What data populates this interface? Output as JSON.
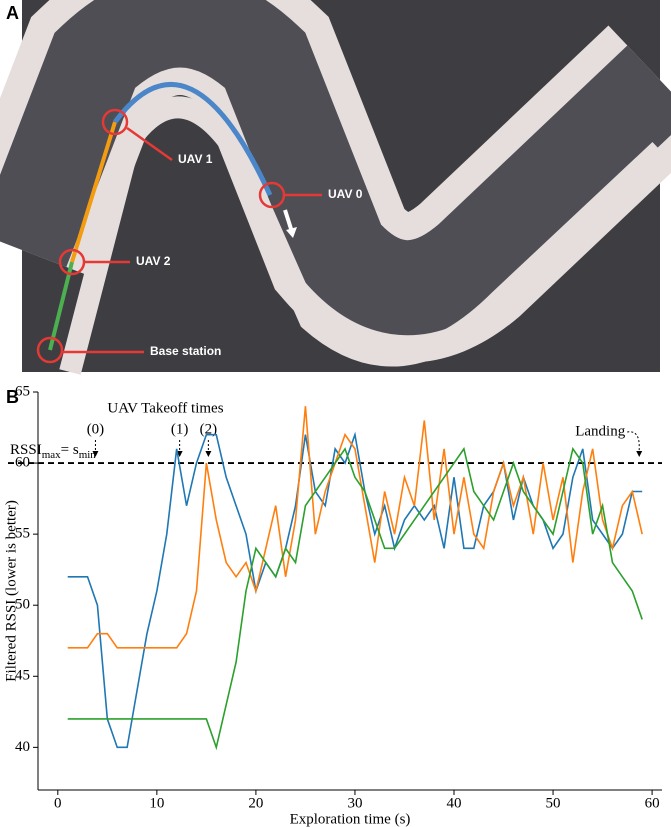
{
  "panel_a": {
    "label": "A",
    "annotations": [
      "UAV 1",
      "UAV 0",
      "UAV 2",
      "Base station"
    ]
  },
  "chart_data": {
    "type": "line",
    "panel_label": "B",
    "xlabel": "Exploration time (s)",
    "ylabel": "Filtered RSSI (lower is better)",
    "xlim": [
      -2,
      61
    ],
    "xticks": [
      0,
      10,
      20,
      30,
      40,
      50,
      60
    ],
    "ylim": [
      37,
      65
    ],
    "yticks": [
      40,
      45,
      50,
      55,
      60,
      65
    ],
    "x": [
      1,
      2,
      3,
      4,
      5,
      6,
      7,
      8,
      9,
      10,
      11,
      12,
      13,
      14,
      15,
      16,
      17,
      18,
      19,
      20,
      21,
      22,
      23,
      24,
      25,
      26,
      27,
      28,
      29,
      30,
      31,
      32,
      33,
      34,
      35,
      36,
      37,
      38,
      39,
      40,
      41,
      42,
      43,
      44,
      45,
      46,
      47,
      48,
      49,
      50,
      51,
      52,
      53,
      54,
      55,
      56,
      57,
      58,
      59
    ],
    "series": [
      {
        "color": "#1f77b4",
        "values": [
          52,
          52,
          52,
          50,
          42,
          40,
          40,
          44,
          48,
          51,
          55,
          61,
          57,
          60,
          62,
          62,
          59,
          57,
          55,
          51,
          53,
          52,
          54,
          57,
          62,
          58,
          57,
          61,
          60,
          62,
          58,
          55,
          57,
          54,
          56,
          57,
          56,
          57,
          54,
          59,
          54,
          54,
          57,
          58,
          60,
          56,
          59,
          57,
          56,
          54,
          55,
          59,
          61,
          56,
          55,
          54,
          55,
          58,
          58
        ]
      },
      {
        "color": "#ff7f0e",
        "values": [
          47,
          47,
          47,
          48,
          48,
          47,
          47,
          47,
          47,
          47,
          47,
          47,
          48,
          51,
          60,
          56,
          53,
          52,
          53,
          51,
          54,
          57,
          52,
          56,
          64,
          55,
          58,
          60,
          62,
          61,
          57,
          53,
          58,
          55,
          59,
          57,
          63,
          56,
          61,
          55,
          59,
          55,
          54,
          58,
          60,
          57,
          59,
          55,
          60,
          56,
          59,
          53,
          58,
          61,
          56,
          54,
          57,
          58,
          55
        ]
      },
      {
        "color": "#2ca02c",
        "values": [
          42,
          42,
          42,
          42,
          42,
          42,
          42,
          42,
          42,
          42,
          42,
          42,
          42,
          42,
          42,
          40,
          43,
          46,
          51,
          54,
          53,
          52,
          54,
          53,
          57,
          58,
          59,
          60,
          61,
          59,
          58,
          56,
          54,
          54,
          55,
          56,
          57,
          58,
          59,
          60,
          61,
          58,
          57,
          56,
          58,
          60,
          58,
          57,
          56,
          55,
          58,
          61,
          60,
          55,
          57,
          53,
          52,
          51,
          49
        ]
      }
    ],
    "threshold": {
      "value": 60,
      "label_parts": [
        "RSSI",
        "max",
        "= s",
        "min"
      ]
    },
    "events_title": "UAV Takeoff times",
    "events": [
      {
        "label": "(0)",
        "x": 3.8
      },
      {
        "label": "(1)",
        "x": 12.3
      },
      {
        "label": "(2)",
        "x": 15.2
      },
      {
        "label": "Landing",
        "x": 58.7
      }
    ]
  }
}
